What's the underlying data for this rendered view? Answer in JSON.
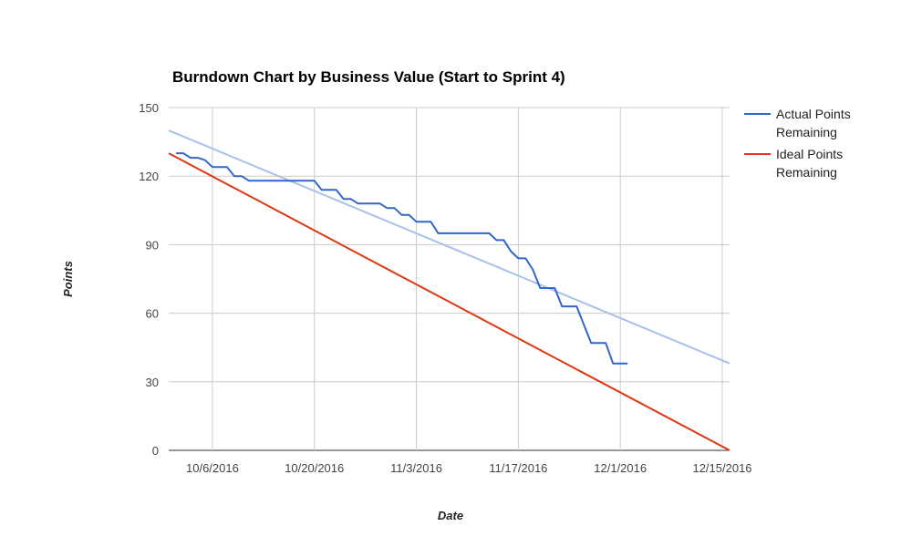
{
  "chart_data": {
    "type": "line",
    "title": "Burndown Chart by Business Value (Start to Sprint 4)",
    "xlabel": "Date",
    "ylabel": "Points",
    "x_tick_labels": [
      "10/6/2016",
      "10/20/2016",
      "11/3/2016",
      "11/17/2016",
      "12/1/2016",
      "12/15/2016"
    ],
    "x_ticks": [
      "2016-10-06",
      "2016-10-20",
      "2016-11-03",
      "2016-11-17",
      "2016-12-01",
      "2016-12-15"
    ],
    "xlim": [
      "2016-09-30",
      "2016-12-16"
    ],
    "ylim": [
      0,
      150
    ],
    "y_ticks": [
      0,
      30,
      60,
      90,
      120,
      150
    ],
    "grid": true,
    "legend_position": "right",
    "series": [
      {
        "name": "Actual Points Remaining",
        "color": "#3366cc",
        "points": [
          [
            "2016-10-01",
            130
          ],
          [
            "2016-10-02",
            130
          ],
          [
            "2016-10-03",
            128
          ],
          [
            "2016-10-04",
            128
          ],
          [
            "2016-10-05",
            127
          ],
          [
            "2016-10-06",
            124
          ],
          [
            "2016-10-07",
            124
          ],
          [
            "2016-10-08",
            124
          ],
          [
            "2016-10-09",
            120
          ],
          [
            "2016-10-10",
            120
          ],
          [
            "2016-10-11",
            118
          ],
          [
            "2016-10-19",
            118
          ],
          [
            "2016-10-20",
            118
          ],
          [
            "2016-10-21",
            114
          ],
          [
            "2016-10-23",
            114
          ],
          [
            "2016-10-24",
            110
          ],
          [
            "2016-10-25",
            110
          ],
          [
            "2016-10-26",
            108
          ],
          [
            "2016-10-29",
            108
          ],
          [
            "2016-10-30",
            106
          ],
          [
            "2016-10-31",
            106
          ],
          [
            "2016-11-01",
            103
          ],
          [
            "2016-11-02",
            103
          ],
          [
            "2016-11-03",
            100
          ],
          [
            "2016-11-05",
            100
          ],
          [
            "2016-11-06",
            95
          ],
          [
            "2016-11-13",
            95
          ],
          [
            "2016-11-14",
            92
          ],
          [
            "2016-11-15",
            92
          ],
          [
            "2016-11-16",
            87
          ],
          [
            "2016-11-17",
            84
          ],
          [
            "2016-11-18",
            84
          ],
          [
            "2016-11-19",
            79
          ],
          [
            "2016-11-20",
            71
          ],
          [
            "2016-11-22",
            71
          ],
          [
            "2016-11-23",
            63
          ],
          [
            "2016-11-25",
            63
          ],
          [
            "2016-11-27",
            47
          ],
          [
            "2016-11-29",
            47
          ],
          [
            "2016-11-30",
            38
          ],
          [
            "2016-12-02",
            38
          ]
        ]
      },
      {
        "name": "Ideal Points Remaining",
        "color": "#dc3912",
        "points": [
          [
            "2016-09-30",
            130
          ],
          [
            "2016-12-16",
            0
          ]
        ]
      }
    ],
    "trendline": {
      "series": "Actual Points Remaining",
      "color": "#a8c0ea",
      "points": [
        [
          "2016-09-30",
          140
        ],
        [
          "2016-12-16",
          38
        ]
      ]
    }
  }
}
